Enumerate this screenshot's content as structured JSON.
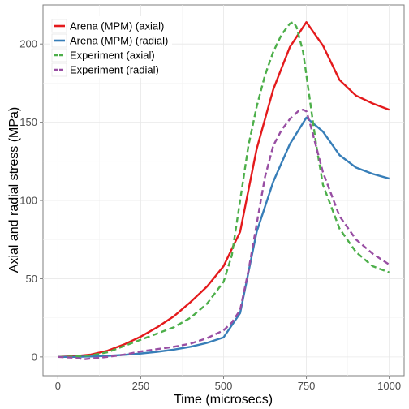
{
  "chart_data": {
    "type": "line",
    "xlabel": "Time (microsecs)",
    "ylabel": "Axial and radial stress (MPa)",
    "xlim": [
      -45,
      1045
    ],
    "ylim": [
      -12,
      225
    ],
    "x_ticks": [
      0,
      250,
      500,
      750,
      1000
    ],
    "x_tick_labels": [
      "0",
      "250",
      "500",
      "750",
      "1000"
    ],
    "y_ticks": [
      0,
      50,
      100,
      150,
      200
    ],
    "y_tick_labels": [
      "0",
      "50",
      "100",
      "150",
      "200"
    ],
    "grid": true,
    "legend_position": "top-left",
    "series": [
      {
        "name": "Arena (MPM) (axial)",
        "color": "#e41a1c",
        "dash": "solid",
        "x": [
          0,
          50,
          100,
          150,
          200,
          250,
          300,
          350,
          400,
          450,
          500,
          550,
          600,
          650,
          700,
          750,
          800,
          850,
          900,
          950,
          1000
        ],
        "y": [
          0,
          0.5,
          1.5,
          4,
          8,
          13,
          19,
          26,
          35,
          45,
          58,
          80,
          133,
          171,
          198,
          214,
          199,
          177,
          167,
          162,
          158
        ]
      },
      {
        "name": "Arena (MPM) (radial)",
        "color": "#377eb8",
        "dash": "solid",
        "x": [
          0,
          50,
          100,
          150,
          200,
          250,
          300,
          350,
          400,
          450,
          500,
          550,
          600,
          650,
          700,
          750,
          800,
          850,
          900,
          950,
          1000
        ],
        "y": [
          0,
          0,
          0.3,
          0.7,
          1.3,
          2.2,
          3.3,
          4.7,
          6.5,
          9,
          12.5,
          28,
          80,
          112,
          136,
          153,
          144,
          129,
          121,
          117,
          114
        ]
      },
      {
        "name": "Experiment (axial)",
        "color": "#4daf4a",
        "dash": "dashed",
        "x": [
          0,
          50,
          100,
          150,
          200,
          250,
          300,
          350,
          400,
          450,
          500,
          525,
          550,
          575,
          600,
          625,
          650,
          675,
          700,
          710,
          720,
          740,
          760,
          780,
          800,
          850,
          900,
          950,
          1000
        ],
        "y": [
          0,
          0.3,
          1,
          3,
          7,
          11,
          15,
          19,
          25,
          34,
          48,
          65,
          100,
          135,
          160,
          180,
          195,
          206,
          213,
          214,
          211,
          195,
          165,
          135,
          110,
          82,
          67,
          58,
          54
        ]
      },
      {
        "name": "Experiment (radial)",
        "color": "#984ea3",
        "dash": "dashed",
        "x": [
          0,
          50,
          80,
          100,
          150,
          200,
          250,
          300,
          350,
          400,
          450,
          500,
          525,
          550,
          575,
          600,
          625,
          650,
          675,
          700,
          725,
          740,
          750,
          760,
          775,
          800,
          850,
          900,
          950,
          1000
        ],
        "y": [
          0,
          -0.5,
          -1.5,
          -1,
          0,
          1.5,
          3.5,
          5,
          6.5,
          8.5,
          12,
          17,
          22,
          30,
          55,
          85,
          115,
          135,
          145,
          152,
          157,
          158,
          157,
          150,
          138,
          118,
          90,
          75,
          66,
          59
        ]
      }
    ]
  }
}
